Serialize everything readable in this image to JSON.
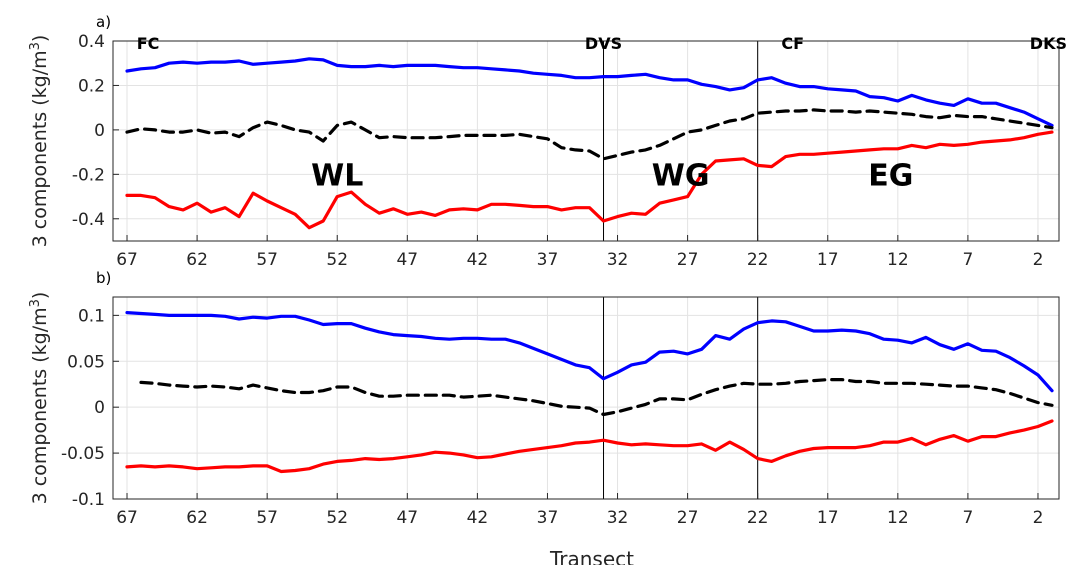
{
  "figure": {
    "xlabel": "Transect"
  },
  "chart_data": [
    {
      "type": "line",
      "panel_label": "a)",
      "ylabel": "3 components (kg/m",
      "ylabel_sup": "3",
      "ylabel_tail": ")",
      "xlim": [
        68,
        0.5
      ],
      "ylim": [
        -0.5,
        0.4
      ],
      "x_ticks": [
        67,
        62,
        57,
        52,
        47,
        42,
        37,
        32,
        27,
        22,
        17,
        12,
        7,
        2
      ],
      "y_ticks": [
        -0.4,
        -0.2,
        0,
        0.2,
        0.4
      ],
      "y_tick_labels": [
        "-0.4",
        "-0.2",
        "0",
        "0.2",
        "0.4"
      ],
      "grid": true,
      "vlines": [
        33,
        22
      ],
      "top_labels": [
        {
          "text": "FC",
          "x": 65.5
        },
        {
          "text": "DVS",
          "x": 33
        },
        {
          "text": "CF",
          "x": 19.5
        },
        {
          "text": "DKS",
          "x": 1.5
        }
      ],
      "region_labels": [
        {
          "text": "WL",
          "x": 52,
          "y": -0.2
        },
        {
          "text": "WG",
          "x": 27.5,
          "y": -0.2
        },
        {
          "text": "EG",
          "x": 12.5,
          "y": -0.2
        }
      ],
      "series": [
        {
          "color": "#0000ff",
          "dash": "solid",
          "x": [
            67,
            66,
            65,
            64,
            63,
            62,
            61,
            60,
            59,
            58,
            57,
            56,
            55,
            54,
            53,
            52,
            51,
            50,
            49,
            48,
            47,
            46,
            45,
            44,
            43,
            42,
            41,
            40,
            39,
            38,
            37,
            36,
            35,
            34,
            33,
            32,
            31,
            30,
            29,
            28,
            27,
            26,
            25,
            24,
            23,
            22,
            21,
            20,
            19,
            18,
            17,
            16,
            15,
            14,
            13,
            12,
            11,
            10,
            9,
            8,
            7,
            6,
            5,
            4,
            3,
            2,
            1
          ],
          "y": [
            0.265,
            0.275,
            0.28,
            0.3,
            0.305,
            0.3,
            0.305,
            0.305,
            0.31,
            0.295,
            0.3,
            0.305,
            0.31,
            0.32,
            0.315,
            0.29,
            0.285,
            0.285,
            0.29,
            0.285,
            0.29,
            0.29,
            0.29,
            0.285,
            0.28,
            0.28,
            0.275,
            0.27,
            0.265,
            0.255,
            0.25,
            0.245,
            0.235,
            0.235,
            0.24,
            0.24,
            0.245,
            0.25,
            0.235,
            0.225,
            0.225,
            0.205,
            0.195,
            0.18,
            0.19,
            0.225,
            0.235,
            0.21,
            0.195,
            0.195,
            0.185,
            0.18,
            0.175,
            0.15,
            0.145,
            0.13,
            0.155,
            0.135,
            0.12,
            0.11,
            0.14,
            0.12,
            0.12,
            0.1,
            0.08,
            0.05,
            0.02
          ]
        },
        {
          "color": "#000000",
          "dash": "dashed",
          "x": [
            67,
            66,
            65,
            64,
            63,
            62,
            61,
            60,
            59,
            58,
            57,
            56,
            55,
            54,
            53,
            52,
            51,
            50,
            49,
            48,
            47,
            46,
            45,
            44,
            43,
            42,
            41,
            40,
            39,
            38,
            37,
            36,
            35,
            34,
            33,
            32,
            31,
            30,
            29,
            28,
            27,
            26,
            25,
            24,
            23,
            22,
            21,
            20,
            19,
            18,
            17,
            16,
            15,
            14,
            13,
            12,
            11,
            10,
            9,
            8,
            7,
            6,
            5,
            4,
            3,
            2,
            1
          ],
          "y": [
            -0.01,
            0.005,
            0,
            -0.01,
            -0.01,
            0,
            -0.015,
            -0.01,
            -0.03,
            0.01,
            0.035,
            0.02,
            0,
            -0.01,
            -0.05,
            0.02,
            0.035,
            0,
            -0.035,
            -0.03,
            -0.035,
            -0.035,
            -0.035,
            -0.03,
            -0.025,
            -0.025,
            -0.025,
            -0.025,
            -0.02,
            -0.03,
            -0.04,
            -0.08,
            -0.09,
            -0.095,
            -0.13,
            -0.115,
            -0.1,
            -0.09,
            -0.07,
            -0.04,
            -0.01,
            0,
            0.02,
            0.04,
            0.05,
            0.075,
            0.08,
            0.085,
            0.085,
            0.09,
            0.085,
            0.085,
            0.08,
            0.085,
            0.08,
            0.075,
            0.07,
            0.06,
            0.055,
            0.065,
            0.06,
            0.06,
            0.05,
            0.04,
            0.03,
            0.02,
            0.01
          ]
        },
        {
          "color": "#ff0000",
          "dash": "solid",
          "x": [
            67,
            66,
            65,
            64,
            63,
            62,
            61,
            60,
            59,
            58,
            57,
            56,
            55,
            54,
            53,
            52,
            51,
            50,
            49,
            48,
            47,
            46,
            45,
            44,
            43,
            42,
            41,
            40,
            39,
            38,
            37,
            36,
            35,
            34,
            33,
            32,
            31,
            30,
            29,
            28,
            27,
            26,
            25,
            24,
            23,
            22,
            21,
            20,
            19,
            18,
            17,
            16,
            15,
            14,
            13,
            12,
            11,
            10,
            9,
            8,
            7,
            6,
            5,
            4,
            3,
            2,
            1
          ],
          "y": [
            -0.295,
            -0.295,
            -0.305,
            -0.345,
            -0.36,
            -0.33,
            -0.37,
            -0.35,
            -0.39,
            -0.285,
            -0.32,
            -0.35,
            -0.38,
            -0.44,
            -0.41,
            -0.3,
            -0.28,
            -0.335,
            -0.375,
            -0.355,
            -0.38,
            -0.37,
            -0.385,
            -0.36,
            -0.355,
            -0.36,
            -0.335,
            -0.335,
            -0.34,
            -0.345,
            -0.345,
            -0.36,
            -0.35,
            -0.35,
            -0.41,
            -0.39,
            -0.375,
            -0.38,
            -0.33,
            -0.315,
            -0.3,
            -0.2,
            -0.14,
            -0.135,
            -0.13,
            -0.16,
            -0.165,
            -0.12,
            -0.11,
            -0.11,
            -0.105,
            -0.1,
            -0.095,
            -0.09,
            -0.085,
            -0.085,
            -0.07,
            -0.08,
            -0.065,
            -0.07,
            -0.065,
            -0.055,
            -0.05,
            -0.045,
            -0.035,
            -0.02,
            -0.01
          ]
        }
      ]
    },
    {
      "type": "line",
      "panel_label": "b)",
      "ylabel": "3 components (kg/m",
      "ylabel_sup": "3",
      "ylabel_tail": ")",
      "xlim": [
        68,
        0.5
      ],
      "ylim": [
        -0.1,
        0.12
      ],
      "x_ticks": [
        67,
        62,
        57,
        52,
        47,
        42,
        37,
        32,
        27,
        22,
        17,
        12,
        7,
        2
      ],
      "y_ticks": [
        -0.1,
        -0.05,
        0,
        0.05,
        0.1
      ],
      "y_tick_labels": [
        "-0.1",
        "-0.05",
        "0",
        "0.05",
        "0.1"
      ],
      "grid": true,
      "vlines": [
        33,
        22
      ],
      "series": [
        {
          "color": "#0000ff",
          "dash": "solid",
          "x": [
            67,
            66,
            65,
            64,
            63,
            62,
            61,
            60,
            59,
            58,
            57,
            56,
            55,
            54,
            53,
            52,
            51,
            50,
            49,
            48,
            47,
            46,
            45,
            44,
            43,
            42,
            41,
            40,
            39,
            38,
            37,
            36,
            35,
            34,
            33,
            32,
            31,
            30,
            29,
            28,
            27,
            26,
            25,
            24,
            23,
            22,
            21,
            20,
            19,
            18,
            17,
            16,
            15,
            14,
            13,
            12,
            11,
            10,
            9,
            8,
            7,
            6,
            5,
            4,
            3,
            2,
            1
          ],
          "y": [
            0.103,
            0.102,
            0.101,
            0.1,
            0.1,
            0.1,
            0.1,
            0.099,
            0.096,
            0.098,
            0.097,
            0.099,
            0.099,
            0.095,
            0.09,
            0.091,
            0.091,
            0.086,
            0.082,
            0.079,
            0.078,
            0.077,
            0.075,
            0.074,
            0.075,
            0.075,
            0.074,
            0.074,
            0.07,
            0.064,
            0.058,
            0.052,
            0.046,
            0.043,
            0.031,
            0.038,
            0.046,
            0.049,
            0.06,
            0.061,
            0.058,
            0.063,
            0.078,
            0.074,
            0.085,
            0.092,
            0.094,
            0.093,
            0.088,
            0.083,
            0.083,
            0.084,
            0.083,
            0.08,
            0.074,
            0.073,
            0.07,
            0.076,
            0.068,
            0.063,
            0.069,
            0.062,
            0.061,
            0.054,
            0.045,
            0.035,
            0.018
          ]
        },
        {
          "color": "#000000",
          "dash": "dashed",
          "x": [
            66,
            65,
            64,
            63,
            62,
            61,
            60,
            59,
            58,
            57,
            56,
            55,
            54,
            53,
            52,
            51,
            50,
            49,
            48,
            47,
            46,
            45,
            44,
            43,
            42,
            41,
            40,
            39,
            38,
            37,
            36,
            35,
            34,
            33,
            32,
            31,
            30,
            29,
            28,
            27,
            26,
            25,
            24,
            23,
            22,
            21,
            20,
            19,
            18,
            17,
            16,
            15,
            14,
            13,
            12,
            11,
            10,
            9,
            8,
            7,
            6,
            5,
            4,
            3,
            2,
            1
          ],
          "y": [
            0.027,
            0.026,
            0.024,
            0.023,
            0.022,
            0.023,
            0.022,
            0.02,
            0.024,
            0.021,
            0.018,
            0.016,
            0.016,
            0.018,
            0.022,
            0.022,
            0.016,
            0.012,
            0.012,
            0.013,
            0.013,
            0.013,
            0.013,
            0.011,
            0.012,
            0.013,
            0.011,
            0.009,
            0.007,
            0.004,
            0.001,
            0,
            -0.001,
            -0.008,
            -0.005,
            -0.001,
            0.003,
            0.009,
            0.009,
            0.008,
            0.014,
            0.019,
            0.023,
            0.026,
            0.025,
            0.025,
            0.026,
            0.028,
            0.029,
            0.03,
            0.03,
            0.028,
            0.028,
            0.026,
            0.026,
            0.026,
            0.025,
            0.024,
            0.023,
            0.023,
            0.021,
            0.019,
            0.015,
            0.01,
            0.005,
            0.002
          ]
        },
        {
          "color": "#ff0000",
          "dash": "solid",
          "x": [
            67,
            66,
            65,
            64,
            63,
            62,
            61,
            60,
            59,
            58,
            57,
            56,
            55,
            54,
            53,
            52,
            51,
            50,
            49,
            48,
            47,
            46,
            45,
            44,
            43,
            42,
            41,
            40,
            39,
            38,
            37,
            36,
            35,
            34,
            33,
            32,
            31,
            30,
            29,
            28,
            27,
            26,
            25,
            24,
            23,
            22,
            21,
            20,
            19,
            18,
            17,
            16,
            15,
            14,
            13,
            12,
            11,
            10,
            9,
            8,
            7,
            6,
            5,
            4,
            3,
            2,
            1
          ],
          "y": [
            -0.065,
            -0.064,
            -0.065,
            -0.064,
            -0.065,
            -0.067,
            -0.066,
            -0.065,
            -0.065,
            -0.064,
            -0.064,
            -0.07,
            -0.069,
            -0.067,
            -0.062,
            -0.059,
            -0.058,
            -0.056,
            -0.057,
            -0.056,
            -0.054,
            -0.052,
            -0.049,
            -0.05,
            -0.052,
            -0.055,
            -0.054,
            -0.051,
            -0.048,
            -0.046,
            -0.044,
            -0.042,
            -0.039,
            -0.038,
            -0.036,
            -0.039,
            -0.041,
            -0.04,
            -0.041,
            -0.042,
            -0.042,
            -0.04,
            -0.047,
            -0.038,
            -0.046,
            -0.056,
            -0.059,
            -0.053,
            -0.048,
            -0.045,
            -0.044,
            -0.044,
            -0.044,
            -0.042,
            -0.038,
            -0.038,
            -0.034,
            -0.041,
            -0.035,
            -0.031,
            -0.037,
            -0.032,
            -0.032,
            -0.028,
            -0.025,
            -0.021,
            -0.015
          ]
        }
      ]
    }
  ]
}
